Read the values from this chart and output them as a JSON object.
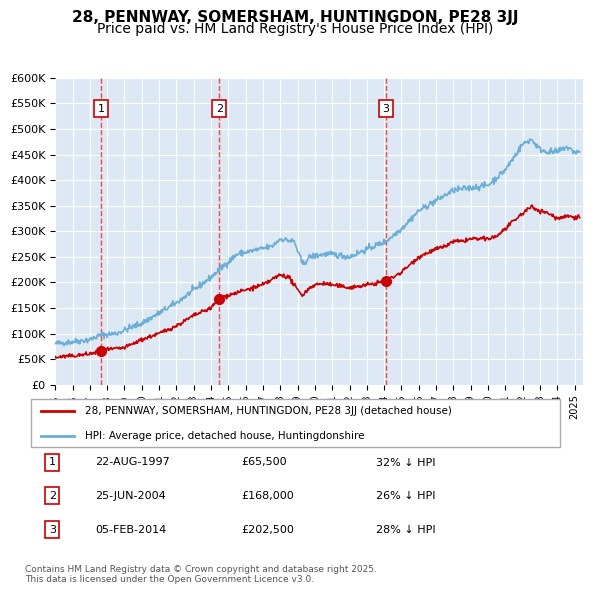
{
  "title": "28, PENNWAY, SOMERSHAM, HUNTINGDON, PE28 3JJ",
  "subtitle": "Price paid vs. HM Land Registry's House Price Index (HPI)",
  "legend_line1": "28, PENNWAY, SOMERSHAM, HUNTINGDON, PE28 3JJ (detached house)",
  "legend_line2": "HPI: Average price, detached house, Huntingdonshire",
  "footer": "Contains HM Land Registry data © Crown copyright and database right 2025.\nThis data is licensed under the Open Government Licence v3.0.",
  "transactions": [
    {
      "num": 1,
      "date": "22-AUG-1997",
      "price": 65500,
      "pct": "32%",
      "year_x": 1997.64
    },
    {
      "num": 2,
      "date": "25-JUN-2004",
      "price": 168000,
      "pct": "26%",
      "year_x": 2004.48
    },
    {
      "num": 3,
      "date": "05-FEB-2014",
      "price": 202500,
      "pct": "28%",
      "year_x": 2014.09
    }
  ],
  "hpi_color": "#6baed6",
  "price_color": "#cc0000",
  "vline_color": "#ff4444",
  "vline1_x": 1997.64,
  "vline2_x": 2004.48,
  "vline3_x": 2014.09,
  "ylim": [
    0,
    600000
  ],
  "xlim_start": 1995.0,
  "xlim_end": 2025.5,
  "background_color": "#dce9f5",
  "plot_bg_color": "#dce9f5",
  "grid_color": "#ffffff",
  "title_fontsize": 11,
  "subtitle_fontsize": 10
}
